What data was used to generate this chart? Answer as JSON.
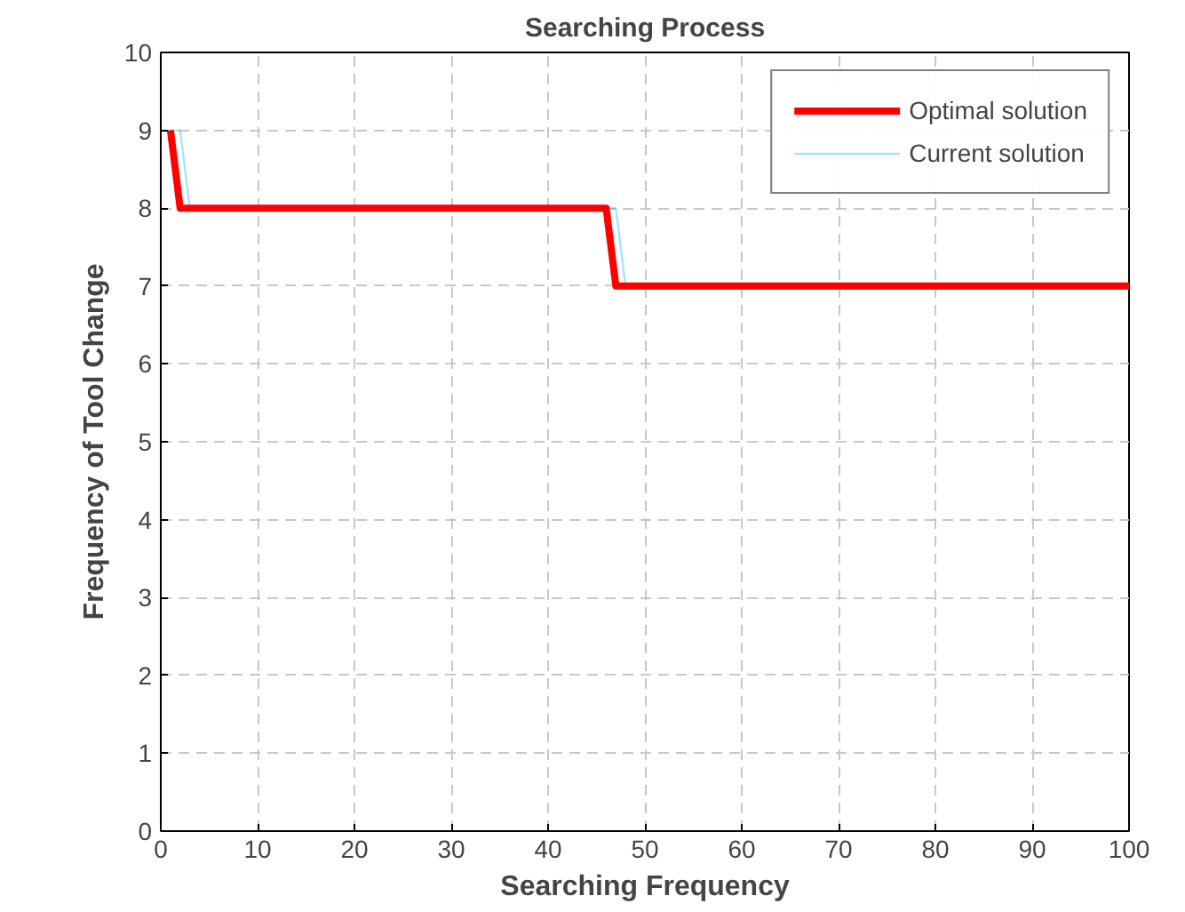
{
  "chart_data": {
    "type": "line",
    "title": "Searching Process",
    "xlabel": "Searching Frequency",
    "ylabel": "Frequency of Tool Change",
    "xlim": [
      0,
      100
    ],
    "xticks": [
      0,
      10,
      20,
      30,
      40,
      50,
      60,
      70,
      80,
      90,
      100
    ],
    "ylim": [
      0,
      10
    ],
    "yticks": [
      0,
      1,
      2,
      3,
      4,
      5,
      6,
      7,
      8,
      9,
      10
    ],
    "grid": true,
    "legend": "top right",
    "marker": "none",
    "line_style": "solid",
    "series": [
      {
        "name": "Optimal solution",
        "color": "#ff0000",
        "x": [
          1,
          2,
          46,
          47,
          100
        ],
        "values": [
          9,
          8,
          8,
          7,
          7
        ]
      },
      {
        "name": "Current solution",
        "color": "#00b0f0",
        "x": [
          1,
          2,
          3,
          47,
          48
        ],
        "values": [
          9,
          9,
          8,
          8,
          7
        ]
      }
    ]
  }
}
